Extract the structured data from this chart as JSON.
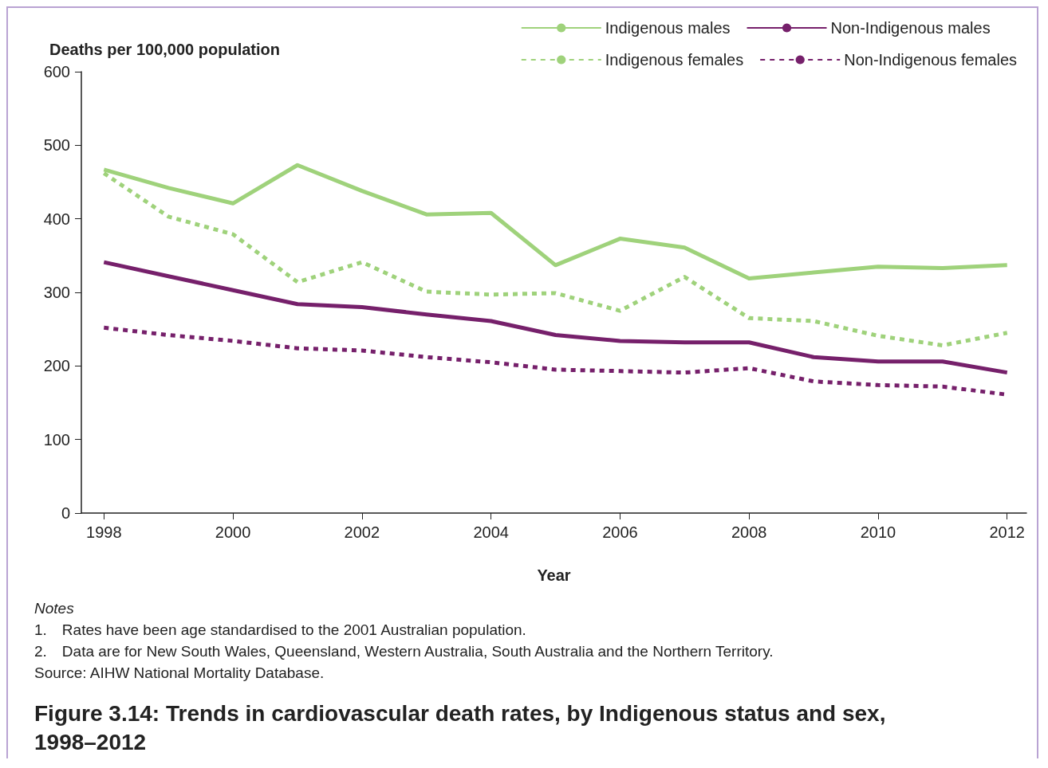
{
  "chart_data": {
    "type": "line",
    "title": "Figure 3.14: Trends in cardiovascular death rates, by Indigenous status and sex, 1998–2012",
    "xlabel": "Year",
    "ylabel": "Deaths per 100,000 population",
    "x": [
      1998,
      1999,
      2000,
      2001,
      2002,
      2003,
      2004,
      2005,
      2006,
      2007,
      2008,
      2009,
      2010,
      2011,
      2012
    ],
    "xlim": [
      1997.65,
      2012.3
    ],
    "xticks": [
      1998,
      2000,
      2002,
      2004,
      2006,
      2008,
      2010,
      2012
    ],
    "ylim": [
      0,
      600
    ],
    "yticks": [
      0,
      100,
      200,
      300,
      400,
      500,
      600
    ],
    "grid": false,
    "legend": "top right",
    "marker": "none",
    "series": [
      {
        "name": "Indigenous males",
        "color": "#9fd27b",
        "line_style": "solid",
        "values": [
          467,
          442,
          421,
          473,
          438,
          406,
          408,
          337,
          373,
          361,
          319,
          327,
          335,
          333,
          337
        ]
      },
      {
        "name": "Non-Indigenous males",
        "color": "#76206b",
        "line_style": "solid",
        "values": [
          341,
          322,
          303,
          284,
          280,
          270,
          261,
          242,
          234,
          232,
          232,
          212,
          206,
          206,
          191
        ]
      },
      {
        "name": "Indigenous females",
        "color": "#9fd27b",
        "line_style": "dotted",
        "values": [
          462,
          403,
          379,
          314,
          341,
          301,
          297,
          299,
          275,
          321,
          265,
          261,
          241,
          228,
          245
        ]
      },
      {
        "name": "Non-Indigenous females",
        "color": "#76206b",
        "line_style": "dotted",
        "values": [
          252,
          242,
          234,
          224,
          221,
          212,
          205,
          195,
          193,
          191,
          197,
          179,
          174,
          172,
          161
        ]
      }
    ],
    "annotations": [
      "Notes",
      "1. Rates have been age standardised to the 2001 Australian population.",
      "2. Data are for New South Wales, Queensland, Western Australia, South Australia and the Northern Territory.",
      "Source: AIHW National Mortality Database."
    ]
  }
}
